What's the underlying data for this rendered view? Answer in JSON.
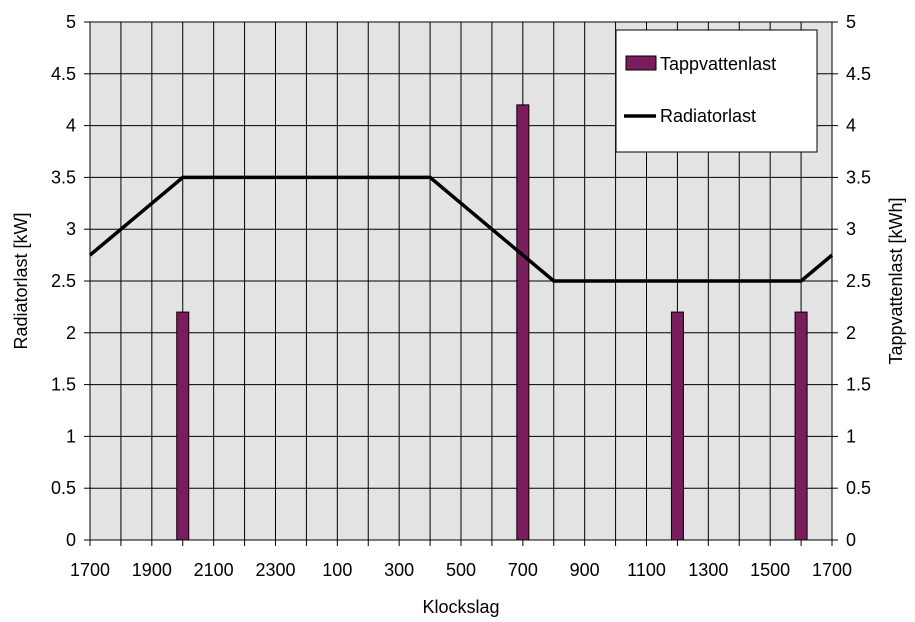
{
  "chart_data": {
    "type": "bar+line",
    "xlabel": "Klockslag",
    "ylabel_left": "Radiatorlast [kW]",
    "ylabel_right": "Tappvattenlast [kWh]",
    "x_tick_labels": [
      "1700",
      "1900",
      "2100",
      "2300",
      "100",
      "300",
      "500",
      "700",
      "900",
      "1100",
      "1300",
      "1500",
      "1700"
    ],
    "x_hours_range": [
      0,
      24
    ],
    "ylim": [
      0,
      5
    ],
    "y_ticks": [
      "0",
      "0.5",
      "1",
      "1.5",
      "2",
      "2.5",
      "3",
      "3.5",
      "4",
      "4.5",
      "5"
    ],
    "grid": true,
    "legend_position": "top-right",
    "series": [
      {
        "name": "Tappvattenlast",
        "type": "bar",
        "axis": "right",
        "color": "#7b1d5c",
        "points": [
          {
            "x": "2000",
            "value": 2.2
          },
          {
            "x": "700",
            "value": 4.2
          },
          {
            "x": "1200",
            "value": 2.2
          },
          {
            "x": "1600",
            "value": 2.2
          }
        ]
      },
      {
        "name": "Radiatorlast",
        "type": "line",
        "axis": "left",
        "color": "#000000",
        "points": [
          {
            "x": "1700",
            "value": 2.75
          },
          {
            "x": "2000",
            "value": 3.5
          },
          {
            "x": "400",
            "value": 3.5
          },
          {
            "x": "800",
            "value": 2.5
          },
          {
            "x": "1600",
            "value": 2.5
          },
          {
            "x": "1700",
            "value": 2.75
          }
        ]
      }
    ]
  }
}
